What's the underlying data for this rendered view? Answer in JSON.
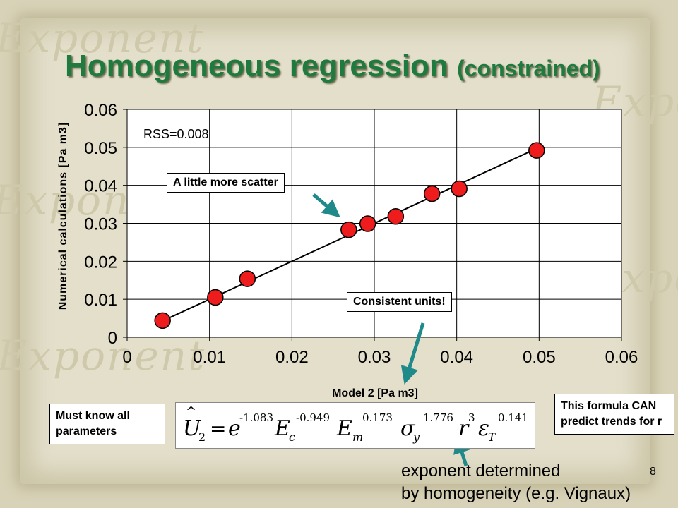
{
  "title": {
    "main": "Homogeneous regression",
    "sub": "(constrained)"
  },
  "watermark_text": "Exponent",
  "rss_label": "RSS=0.008",
  "callouts": {
    "scatter": "A little more scatter",
    "units": "Consistent units!"
  },
  "notes": {
    "left": "Must know all parameters",
    "right": "This formula CAN predict trends for r"
  },
  "footnote": {
    "line1": "exponent determined",
    "line2": "by homogeneity (e.g. Vignaux)"
  },
  "page_number": "8",
  "formula": {
    "lhs_symbol": "U",
    "lhs_subscript": "2",
    "e_exp": "-1.083",
    "Ec_exp": "-0.949",
    "Em_exp": "0.173",
    "sigma_exp": "1.776",
    "r_exp": "3",
    "eps_exp": "0.141"
  },
  "colors": {
    "title": "#1e7a3e",
    "marker": "#ee1c1c",
    "arrow": "#1f8a8a"
  },
  "chart_data": {
    "type": "scatter",
    "xlabel": "Model 2 [Pa m3]",
    "ylabel": "Numerical calculations [Pa m3]",
    "xlim": [
      0,
      0.06
    ],
    "ylim": [
      0,
      0.06
    ],
    "xticks": [
      "0",
      "0.01",
      "0.02",
      "0.03",
      "0.04",
      "0.05",
      "0.06"
    ],
    "yticks": [
      "0",
      "0.01",
      "0.02",
      "0.03",
      "0.04",
      "0.05",
      "0.06"
    ],
    "grid": true,
    "series": [
      {
        "x": [
          0.0043,
          0.0107,
          0.0146,
          0.0269,
          0.0292,
          0.0326,
          0.037,
          0.0403,
          0.0497
        ],
        "y": [
          0.0044,
          0.0105,
          0.0154,
          0.0283,
          0.0299,
          0.0318,
          0.0378,
          0.0391,
          0.0492
        ]
      }
    ],
    "fit_line": {
      "x": [
        0.0043,
        0.0497
      ],
      "y": [
        0.0043,
        0.0497
      ]
    }
  }
}
